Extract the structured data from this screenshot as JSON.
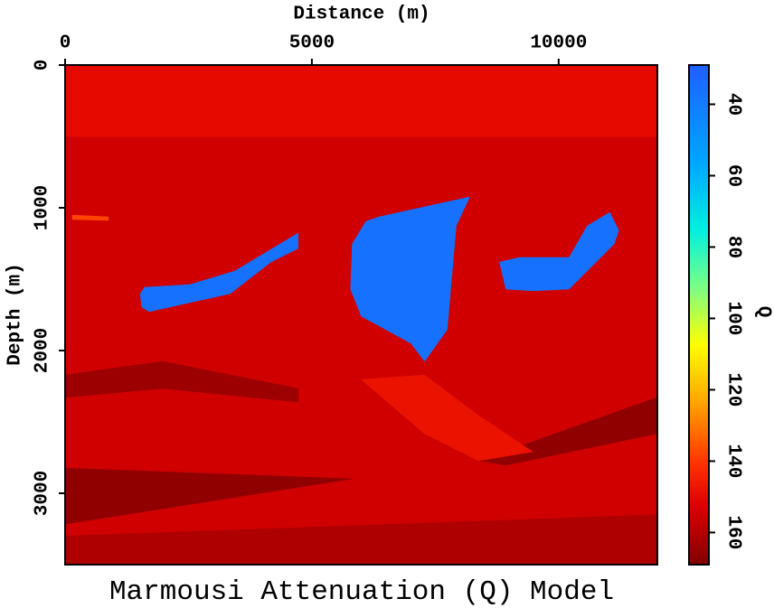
{
  "chart_data": {
    "type": "image",
    "title": "Marmousi Attenuation (Q) Model",
    "x_label": "Distance (m)",
    "y_label": "Depth (m)",
    "colorbar_label": "Q",
    "colormap": "jet",
    "xlim": [
      0,
      12000
    ],
    "xticks": [
      0,
      5000,
      10000
    ],
    "ylim": [
      3500,
      0
    ],
    "yticks": [
      0,
      1000,
      2000,
      3000
    ],
    "clim": [
      29,
      169
    ],
    "cticks": [
      40,
      60,
      80,
      100,
      120,
      140,
      160
    ],
    "regions": [
      {
        "q": 155,
        "points": [
          [
            0,
            0
          ],
          [
            12000,
            0
          ],
          [
            12000,
            3500
          ],
          [
            0,
            3500
          ]
        ]
      },
      {
        "q": 150,
        "points": [
          [
            0,
            0
          ],
          [
            12000,
            0
          ],
          [
            12000,
            500
          ],
          [
            0,
            500
          ]
        ]
      },
      {
        "q": 164,
        "points": [
          [
            0,
            2171
          ],
          [
            1976,
            2076
          ],
          [
            4721,
            2266
          ],
          [
            4721,
            2361
          ],
          [
            1976,
            2266
          ],
          [
            0,
            2329
          ]
        ]
      },
      {
        "q": 161,
        "points": [
          [
            0,
            3300
          ],
          [
            12000,
            3150
          ],
          [
            12000,
            3500
          ],
          [
            0,
            3500
          ]
        ]
      },
      {
        "q": 166,
        "points": [
          [
            0,
            2823
          ],
          [
            5819,
            2899
          ],
          [
            0,
            3216
          ]
        ]
      },
      {
        "q": 166,
        "points": [
          [
            8381,
            2772
          ],
          [
            11990,
            2329
          ],
          [
            11990,
            2583
          ],
          [
            8930,
            2804
          ]
        ]
      },
      {
        "q": 148,
        "points": [
          [
            6002,
            2203
          ],
          [
            7283,
            2171
          ],
          [
            8381,
            2456
          ],
          [
            9479,
            2709
          ],
          [
            8381,
            2772
          ],
          [
            7283,
            2583
          ]
        ]
      },
      {
        "q": 138,
        "points": [
          [
            146,
            1051
          ],
          [
            878,
            1063
          ],
          [
            878,
            1089
          ],
          [
            146,
            1082
          ]
        ]
      },
      {
        "q": 36,
        "points": [
          [
            1519,
            1601
          ],
          [
            1610,
            1557
          ],
          [
            2525,
            1538
          ],
          [
            3440,
            1443
          ],
          [
            4721,
            1177
          ],
          [
            4721,
            1285
          ],
          [
            4172,
            1380
          ],
          [
            3349,
            1601
          ],
          [
            1702,
            1728
          ],
          [
            1555,
            1696
          ]
        ]
      },
      {
        "q": 36,
        "points": [
          [
            6094,
            1095
          ],
          [
            6368,
            1063
          ],
          [
            8198,
            924
          ],
          [
            7924,
            1127
          ],
          [
            7741,
            1855
          ],
          [
            7283,
            2076
          ],
          [
            7009,
            1950
          ],
          [
            6002,
            1760
          ],
          [
            5783,
            1570
          ],
          [
            5819,
            1253
          ]
        ]
      },
      {
        "q": 36,
        "points": [
          [
            8802,
            1380
          ],
          [
            9205,
            1348
          ],
          [
            10211,
            1348
          ],
          [
            10577,
            1127
          ],
          [
            11035,
            1032
          ],
          [
            11218,
            1158
          ],
          [
            11126,
            1253
          ],
          [
            10760,
            1380
          ],
          [
            10211,
            1570
          ],
          [
            9479,
            1582
          ],
          [
            8930,
            1570
          ]
        ]
      }
    ]
  }
}
